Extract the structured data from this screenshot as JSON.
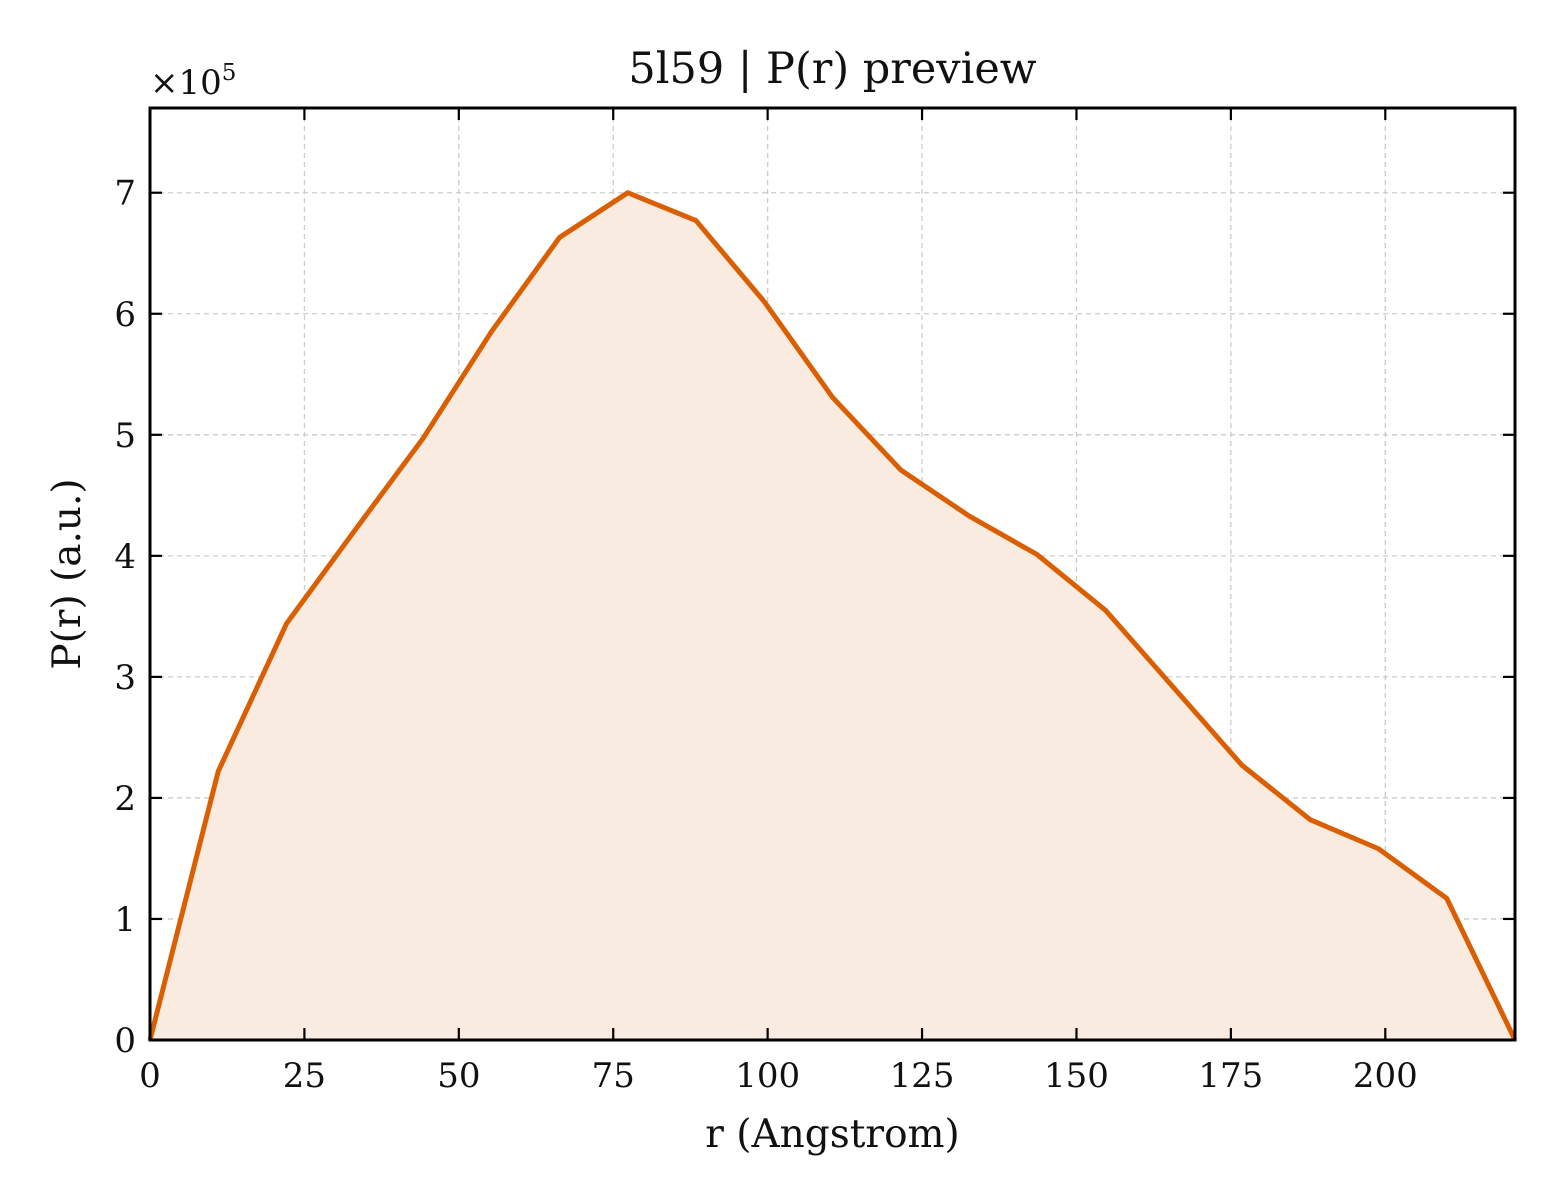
{
  "chart_data": {
    "type": "area",
    "title": "5l59 | P(r) preview",
    "xlabel": "r (Angstrom)",
    "ylabel": "P(r) (a.u.)",
    "y_offset_label": "×10",
    "y_offset_exponent": "5",
    "xlim": [
      0,
      221
    ],
    "ylim": [
      0,
      7.7
    ],
    "x_ticks": [
      0,
      25,
      50,
      75,
      100,
      125,
      150,
      175,
      200
    ],
    "x_tick_labels": [
      "0",
      "25",
      "50",
      "75",
      "100",
      "125",
      "150",
      "175",
      "200"
    ],
    "y_ticks": [
      0,
      1,
      2,
      3,
      4,
      5,
      6,
      7
    ],
    "y_tick_labels": [
      "0",
      "1",
      "2",
      "3",
      "4",
      "5",
      "6",
      "7"
    ],
    "grid": true,
    "series": [
      {
        "x": [
          0,
          11.05,
          22.1,
          33.15,
          44.2,
          55.25,
          66.3,
          77.35,
          88.4,
          99.45,
          110.5,
          121.55,
          132.6,
          143.65,
          154.7,
          165.75,
          176.8,
          187.85,
          198.9,
          209.95,
          221
        ],
        "y": [
          0,
          2.22,
          3.44,
          4.21,
          4.97,
          5.85,
          6.63,
          7.0,
          6.77,
          6.1,
          5.31,
          4.71,
          4.33,
          4.01,
          3.55,
          2.91,
          2.27,
          1.82,
          1.58,
          1.17,
          0
        ],
        "color": "#d95f02",
        "fill_color": "#f9ebe0"
      }
    ]
  }
}
